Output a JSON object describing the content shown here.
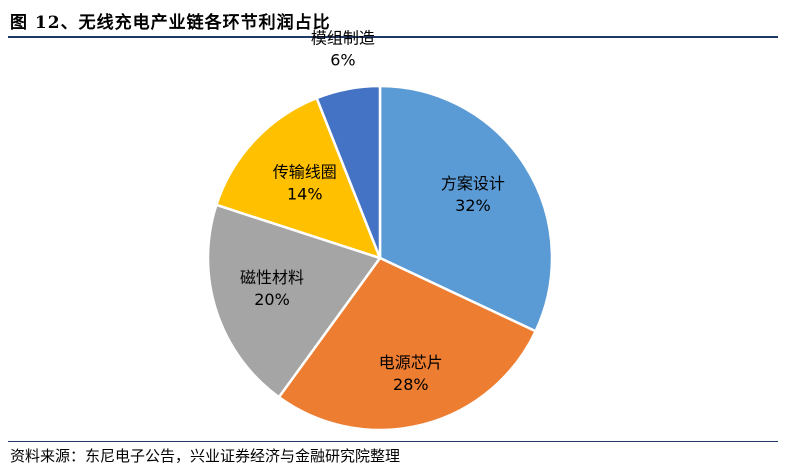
{
  "figure": {
    "title": "图 12、无线充电产业链各环节利润占比",
    "source": "资料来源：东尼电子公告，兴业证券经济与金融研究院整理"
  },
  "chart_data": {
    "type": "pie",
    "slices": [
      {
        "label": "方案设计",
        "value": 32,
        "value_label": "32%",
        "color": "#5b9bd5"
      },
      {
        "label": "电源芯片",
        "value": 28,
        "value_label": "28%",
        "color": "#ed7d31"
      },
      {
        "label": "磁性材料",
        "value": 20,
        "value_label": "20%",
        "color": "#a5a5a5"
      },
      {
        "label": "传输线圈",
        "value": 14,
        "value_label": "14%",
        "color": "#ffc000"
      },
      {
        "label": "模组制造",
        "value": 6,
        "value_label": "6%",
        "color": "#4472c4"
      }
    ],
    "start": "12 o'clock",
    "direction": "clockwise",
    "labels": "inside slices"
  }
}
